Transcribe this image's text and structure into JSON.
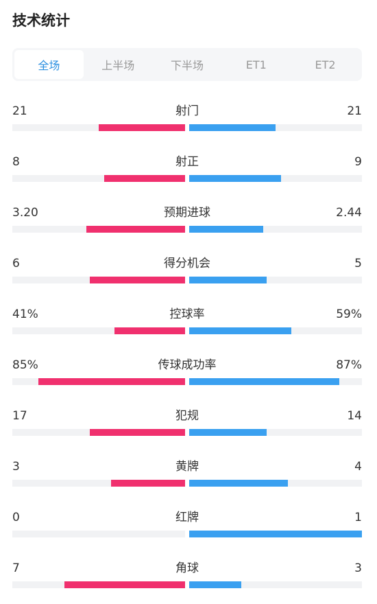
{
  "title": "技术统计",
  "tabs": [
    "全场",
    "上半场",
    "下半场",
    "ET1",
    "ET2"
  ],
  "active_tab": 0,
  "colors": {
    "home": "#f0306e",
    "away": "#3aa0f0",
    "active_tab": "#2b8fe0"
  },
  "stats": [
    {
      "label": "射门",
      "left": "21",
      "right": "21",
      "left_frac": 0.5,
      "right_frac": 0.5
    },
    {
      "label": "射正",
      "left": "8",
      "right": "9",
      "left_frac": 0.47,
      "right_frac": 0.53
    },
    {
      "label": "预期进球",
      "left": "3.20",
      "right": "2.44",
      "left_frac": 0.57,
      "right_frac": 0.43
    },
    {
      "label": "得分机会",
      "left": "6",
      "right": "5",
      "left_frac": 0.55,
      "right_frac": 0.45
    },
    {
      "label": "控球率",
      "left": "41%",
      "right": "59%",
      "left_frac": 0.41,
      "right_frac": 0.59
    },
    {
      "label": "传球成功率",
      "left": "85%",
      "right": "87%",
      "left_frac": 0.85,
      "right_frac": 0.87
    },
    {
      "label": "犯规",
      "left": "17",
      "right": "14",
      "left_frac": 0.55,
      "right_frac": 0.45
    },
    {
      "label": "黄牌",
      "left": "3",
      "right": "4",
      "left_frac": 0.43,
      "right_frac": 0.57
    },
    {
      "label": "红牌",
      "left": "0",
      "right": "1",
      "left_frac": 0.0,
      "right_frac": 1.0
    },
    {
      "label": "角球",
      "left": "7",
      "right": "3",
      "left_frac": 0.7,
      "right_frac": 0.3
    }
  ]
}
